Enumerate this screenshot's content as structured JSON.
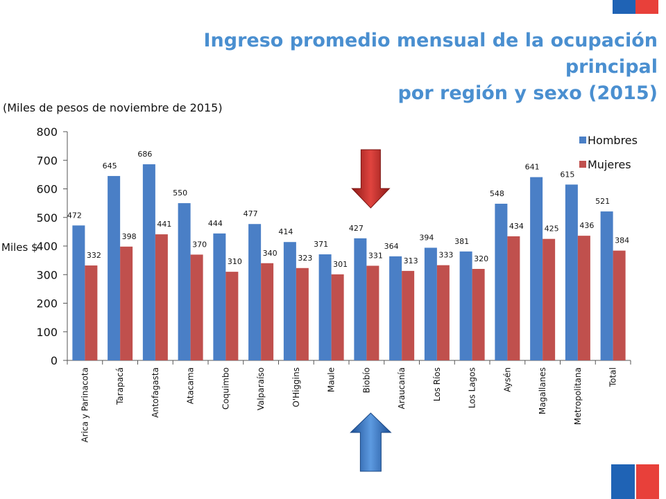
{
  "title_line1": "Ingreso promedio mensual de la ocupación principal",
  "title_line2": "por región y sexo (2015)",
  "subtitle": "(Miles de pesos de noviembre de 2015)",
  "colors": {
    "hombres": "#4a7fc6",
    "mujeres": "#c0504d",
    "title": "#4a8fd0",
    "flag_blue": "#1f63b5",
    "flag_red": "#e8403a"
  },
  "chart_data": {
    "type": "bar",
    "ylabel": "Miles $",
    "ylim": [
      0,
      800
    ],
    "yticks": [
      0,
      100,
      200,
      300,
      400,
      500,
      600,
      700,
      800
    ],
    "legend_position": "top-right",
    "grid": false,
    "categories": [
      "Arica y Parinacota",
      "Tarapacá",
      "Antofagasta",
      "Atacama",
      "Coquimbo",
      "Valparaíso",
      "O'Higgins",
      "Maule",
      "Biobío",
      "Araucanía",
      "Los Ríos",
      "Los Lagos",
      "Aysén",
      "Magallanes",
      "Metropolitana",
      "Total"
    ],
    "series": [
      {
        "name": "Hombres",
        "values": [
          472,
          645,
          686,
          550,
          444,
          477,
          414,
          371,
          427,
          364,
          394,
          381,
          548,
          641,
          615,
          521
        ]
      },
      {
        "name": "Mujeres",
        "values": [
          332,
          398,
          441,
          370,
          310,
          340,
          323,
          301,
          331,
          313,
          333,
          320,
          434,
          425,
          436,
          384
        ]
      }
    ]
  },
  "annotations": [
    {
      "name": "red-down-arrow",
      "points_to": "Biobío"
    },
    {
      "name": "blue-up-arrow",
      "points_to": "Biobío"
    }
  ]
}
